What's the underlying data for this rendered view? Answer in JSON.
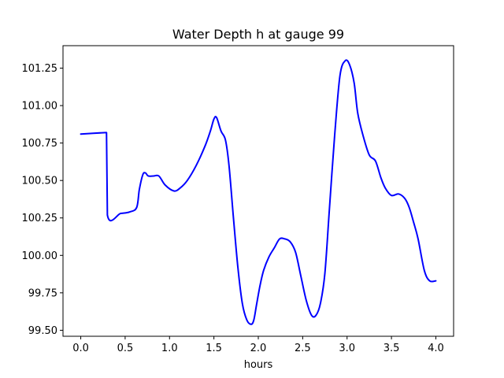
{
  "chart_data": {
    "type": "line",
    "title": "Water Depth h at gauge 99",
    "xlabel": "hours",
    "ylabel": "",
    "xlim": [
      -0.2,
      4.2
    ],
    "ylim": [
      99.46,
      101.4
    ],
    "grid": false,
    "xticks": [
      0.0,
      0.5,
      1.0,
      1.5,
      2.0,
      2.5,
      3.0,
      3.5,
      4.0
    ],
    "xtick_labels": [
      "0.0",
      "0.5",
      "1.0",
      "1.5",
      "2.0",
      "2.5",
      "3.0",
      "3.5",
      "4.0"
    ],
    "yticks": [
      99.5,
      99.75,
      100.0,
      100.25,
      100.5,
      100.75,
      101.0,
      101.25
    ],
    "ytick_labels": [
      "99.50",
      "99.75",
      "100.00",
      "100.25",
      "100.50",
      "100.75",
      "101.00",
      "101.25"
    ],
    "series": [
      {
        "color": "#0000ff",
        "x": [
          0.0,
          0.28,
          0.29,
          0.3,
          0.45,
          0.55,
          0.63,
          0.66,
          0.7,
          0.73,
          0.76,
          0.82,
          0.88,
          0.95,
          1.05,
          1.12,
          1.2,
          1.3,
          1.4,
          1.46,
          1.5,
          1.53,
          1.58,
          1.63,
          1.67,
          1.72,
          1.77,
          1.82,
          1.87,
          1.92,
          1.95,
          1.98,
          2.02,
          2.06,
          2.12,
          2.18,
          2.24,
          2.3,
          2.36,
          2.42,
          2.48,
          2.54,
          2.6,
          2.65,
          2.7,
          2.75,
          2.8,
          2.86,
          2.92,
          2.98,
          3.03,
          3.08,
          3.12,
          3.18,
          3.25,
          3.32,
          3.38,
          3.43,
          3.5,
          3.58,
          3.65,
          3.7,
          3.75,
          3.8,
          3.87,
          3.93,
          4.0
        ],
        "y": [
          100.81,
          100.82,
          100.82,
          100.27,
          100.28,
          100.29,
          100.32,
          100.44,
          100.54,
          100.55,
          100.53,
          100.53,
          100.53,
          100.47,
          100.43,
          100.45,
          100.5,
          100.6,
          100.73,
          100.83,
          100.91,
          100.92,
          100.83,
          100.77,
          100.6,
          100.25,
          99.92,
          99.68,
          99.57,
          99.54,
          99.57,
          99.67,
          99.8,
          99.9,
          99.99,
          100.05,
          100.11,
          100.11,
          100.09,
          100.02,
          99.86,
          99.7,
          99.6,
          99.6,
          99.68,
          99.88,
          100.3,
          100.8,
          101.2,
          101.3,
          101.27,
          101.15,
          100.95,
          100.8,
          100.67,
          100.63,
          100.52,
          100.45,
          100.4,
          100.41,
          100.38,
          100.32,
          100.22,
          100.11,
          99.9,
          99.83,
          99.83
        ]
      }
    ]
  }
}
